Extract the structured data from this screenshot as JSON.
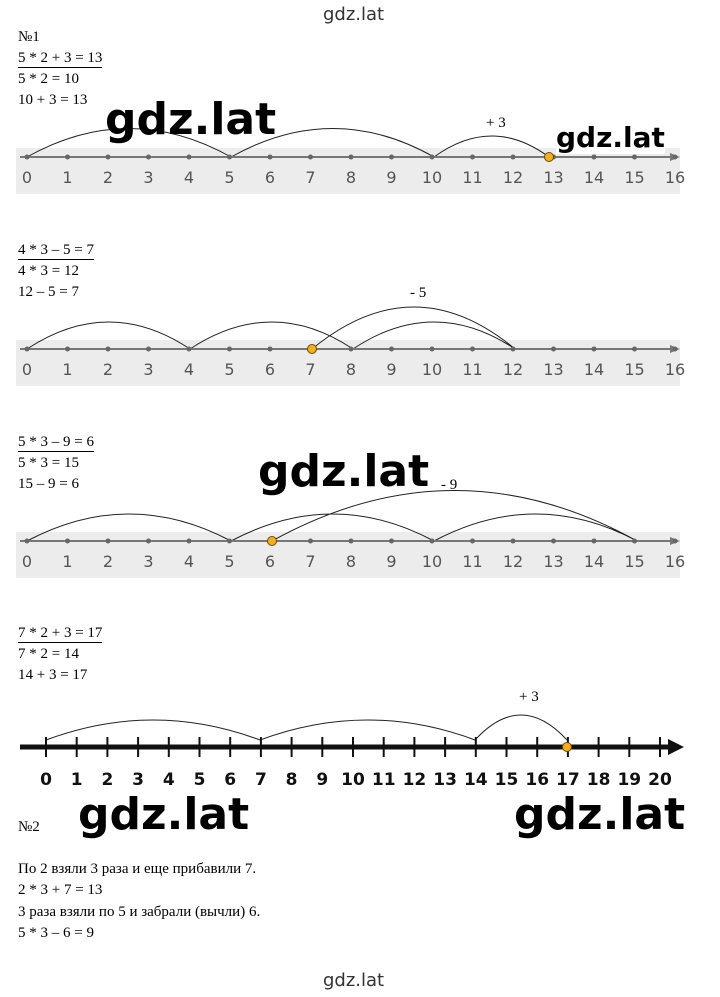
{
  "header": "gdz.lat",
  "footer": "gdz.lat",
  "task1": {
    "label": "№1",
    "exercises": [
      {
        "equation": "5 * 2 + 3 = 13",
        "steps": [
          "5 * 2 = 10",
          "10 + 3 = 13"
        ],
        "note": "+ 3",
        "ticks": [
          0,
          1,
          2,
          3,
          4,
          5,
          6,
          7,
          8,
          9,
          10,
          11,
          12,
          13,
          14,
          15,
          16
        ]
      },
      {
        "equation": "4 * 3 – 5 = 7",
        "steps": [
          "4 * 3 = 12",
          "12 – 5 = 7"
        ],
        "note": "- 5",
        "ticks": [
          0,
          1,
          2,
          3,
          4,
          5,
          6,
          7,
          8,
          9,
          10,
          11,
          12,
          13,
          14,
          15,
          16
        ]
      },
      {
        "equation": "5 * 3 – 9 = 6",
        "steps": [
          "5 * 3 = 15",
          "15 – 9 = 6"
        ],
        "note": "- 9",
        "ticks": [
          0,
          1,
          2,
          3,
          4,
          5,
          6,
          7,
          8,
          9,
          10,
          11,
          12,
          13,
          14,
          15,
          16
        ]
      },
      {
        "equation": "7 * 2 + 3 = 17",
        "steps": [
          "7 * 2 = 14",
          "14 + 3 = 17"
        ],
        "note": "+ 3",
        "ticks": [
          0,
          1,
          2,
          3,
          4,
          5,
          6,
          7,
          8,
          9,
          10,
          11,
          12,
          13,
          14,
          15,
          16,
          17,
          18,
          19,
          20
        ]
      }
    ]
  },
  "task2": {
    "label": "№2",
    "lines": [
      "По 2 взяли 3 раза и еще прибавили 7.",
      "2 * 3 + 7 = 13",
      "3 раза взяли по 5 и забрали (вычли) 6.",
      "5 * 3 – 6 = 9"
    ]
  },
  "watermarks": [
    "gdz.lat",
    "gdz.lat",
    "gdz.lat",
    "gdz.lat",
    "gdz.lat"
  ]
}
